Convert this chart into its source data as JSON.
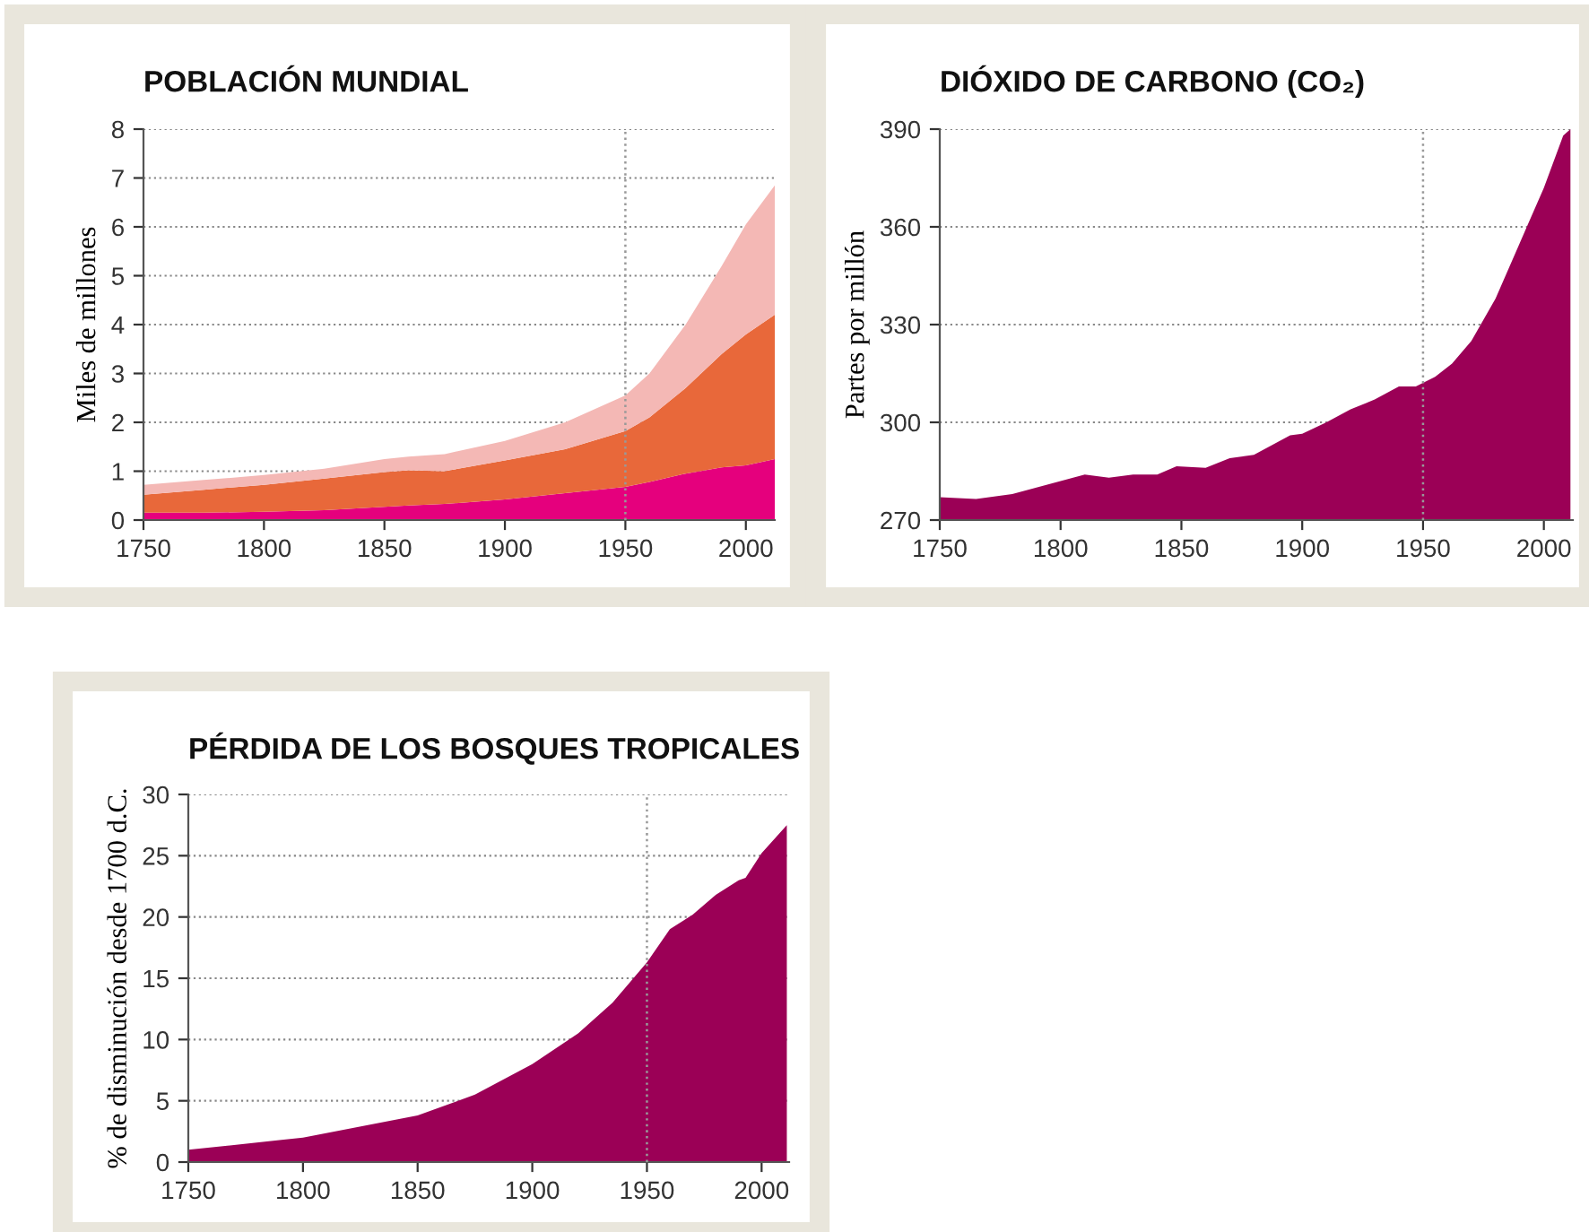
{
  "chart_data": [
    {
      "type": "area",
      "title": "POBLACIÓN MUNDIAL",
      "ylabel": "Miles de millones",
      "stacked": true,
      "x": [
        1750,
        1775,
        1800,
        1825,
        1850,
        1860,
        1875,
        1900,
        1925,
        1950,
        1960,
        1975,
        1990,
        2000,
        2012
      ],
      "series": [
        {
          "color": "#e5007d",
          "values": [
            0.15,
            0.15,
            0.17,
            0.2,
            0.27,
            0.3,
            0.33,
            0.42,
            0.55,
            0.68,
            0.78,
            0.95,
            1.08,
            1.12,
            1.25
          ]
        },
        {
          "color": "#e8683a",
          "values": [
            0.37,
            0.47,
            0.55,
            0.65,
            0.71,
            0.72,
            0.67,
            0.8,
            0.9,
            1.14,
            1.32,
            1.75,
            2.32,
            2.68,
            2.95
          ]
        },
        {
          "color": "#f4b8b5",
          "values": [
            0.2,
            0.2,
            0.2,
            0.2,
            0.27,
            0.28,
            0.35,
            0.4,
            0.55,
            0.73,
            0.9,
            1.3,
            1.8,
            2.25,
            2.65
          ]
        }
      ],
      "xlim": [
        1750,
        2012
      ],
      "xticks": [
        1750,
        1800,
        1850,
        1900,
        1950,
        2000
      ],
      "ylim": [
        0,
        8
      ],
      "yticks": [
        0,
        1,
        2,
        3,
        4,
        5,
        6,
        7,
        8
      ],
      "grid": "y",
      "ref_lines": [
        {
          "axis": "x",
          "value": 1950,
          "color": "#999999",
          "line_style": "dotted"
        }
      ]
    },
    {
      "type": "area",
      "title": "DIÓXIDO DE CARBONO (CO₂)",
      "ylabel": "Partes por millón",
      "x": [
        1750,
        1765,
        1780,
        1790,
        1800,
        1810,
        1820,
        1830,
        1840,
        1848,
        1860,
        1870,
        1880,
        1890,
        1895,
        1900,
        1910,
        1920,
        1930,
        1940,
        1947,
        1955,
        1962,
        1970,
        1980,
        1990,
        2000,
        2008,
        2011
      ],
      "series": [
        {
          "color": "#9b0056",
          "values": [
            277,
            276.5,
            278,
            280,
            282,
            284,
            283,
            284,
            284,
            286.5,
            286,
            289,
            290,
            294,
            296,
            296.5,
            300,
            304,
            307,
            311,
            311,
            314,
            318,
            325,
            338,
            355,
            372,
            388,
            390
          ]
        }
      ],
      "xlim": [
        1750,
        2012
      ],
      "xticks": [
        1750,
        1800,
        1850,
        1900,
        1950,
        2000
      ],
      "ylim": [
        270,
        390
      ],
      "yticks": [
        270,
        300,
        330,
        360,
        390
      ],
      "grid": "y",
      "ref_lines": [
        {
          "axis": "x",
          "value": 1950,
          "color": "#999999",
          "line_style": "dotted"
        }
      ]
    },
    {
      "type": "area",
      "title": "PÉRDIDA DE LOS BOSQUES TROPICALES",
      "ylabel": "% de disminución desde 1700 d.C.",
      "x": [
        1750,
        1800,
        1850,
        1875,
        1900,
        1920,
        1935,
        1950,
        1960,
        1970,
        1980,
        1990,
        1993,
        2000,
        2011
      ],
      "series": [
        {
          "color": "#9b0056",
          "values": [
            1,
            2,
            3.8,
            5.5,
            8,
            10.5,
            13,
            16.3,
            19,
            20.2,
            21.8,
            23,
            23.2,
            25.2,
            27.5
          ]
        }
      ],
      "xlim": [
        1750,
        2012
      ],
      "xticks": [
        1750,
        1800,
        1850,
        1900,
        1950,
        2000
      ],
      "ylim": [
        0,
        30
      ],
      "yticks": [
        0,
        5,
        10,
        15,
        20,
        25,
        30
      ],
      "grid": "y",
      "ref_lines": [
        {
          "axis": "x",
          "value": 1950,
          "color": "#999999",
          "line_style": "dotted"
        }
      ]
    }
  ]
}
